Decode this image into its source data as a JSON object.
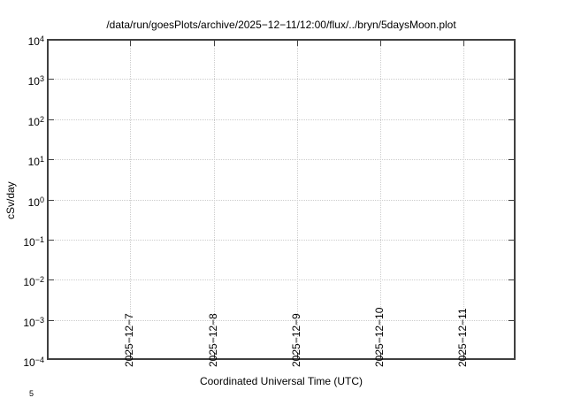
{
  "chart_data": {
    "type": "line",
    "title": "/data/run/goesPlots/archive/2025−12−11/12:00/flux/../bryn/5daysMoon.plot",
    "xlabel": "Coordinated Universal Time (UTC)",
    "ylabel": "cSv/day",
    "x_axis": {
      "tick_labels": [
        "2025−12−7",
        "2025−12−8",
        "2025−12−9",
        "2025−12−10",
        "2025−12−11"
      ],
      "tick_rotation_deg": 90
    },
    "y_axis": {
      "scale": "log",
      "base": "10",
      "tick_exponents": [
        "4",
        "3",
        "2",
        "1",
        "0",
        "−1",
        "−2",
        "−3",
        "−4"
      ],
      "range_low": "1e-4",
      "range_high": "1e4"
    },
    "grid": "dotted",
    "legend": "none",
    "series": []
  },
  "clipped_next_plot_tick": "5",
  "colors": {
    "background": "#ffffff",
    "border": "#404040",
    "grid": "#cdcdcd",
    "text": "#000000"
  }
}
